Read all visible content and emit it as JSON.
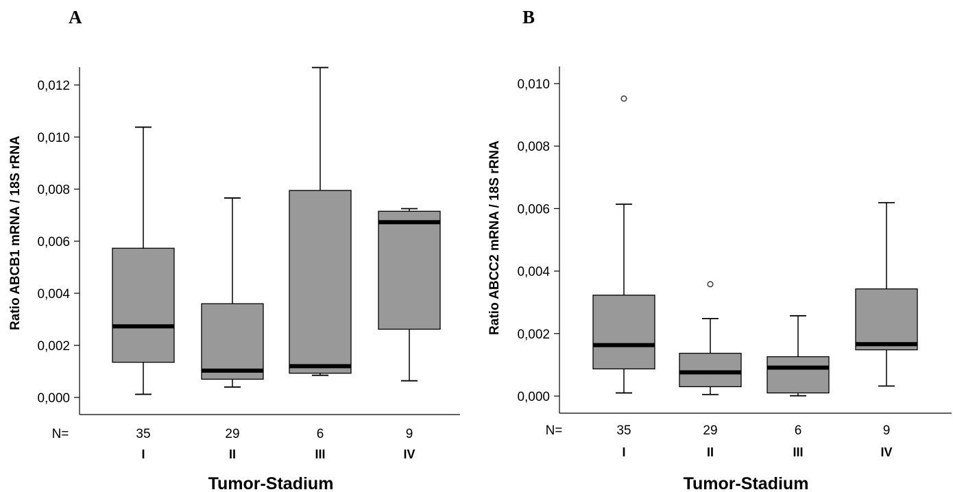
{
  "chart_data": [
    {
      "type": "box",
      "panel_label": "A",
      "ylabel": "Ratio ABCB1 mRNA / 18S rRNA",
      "xlabel": "Tumor-Stadium",
      "n_prefix": "N=",
      "categories": [
        "I",
        "II",
        "III",
        "IV"
      ],
      "n_values": [
        "35",
        "29",
        "6",
        "9"
      ],
      "ylim": [
        0,
        0.0128
      ],
      "yticks": [
        0.0,
        0.002,
        0.004,
        0.006,
        0.008,
        0.01,
        0.012
      ],
      "ytick_labels": [
        "0,000",
        "0,002",
        "0,004",
        "0,006",
        "0,008",
        "0,010",
        "0,012"
      ],
      "box_color": "#999999",
      "boxes": [
        {
          "min": 0.00012,
          "q1": 0.00135,
          "median": 0.00273,
          "q3": 0.00573,
          "max": 0.01038,
          "outliers": []
        },
        {
          "min": 0.0004,
          "q1": 0.0007,
          "median": 0.00103,
          "q3": 0.0036,
          "max": 0.00766,
          "outliers": []
        },
        {
          "min": 0.00085,
          "q1": 0.00093,
          "median": 0.0012,
          "q3": 0.00795,
          "max": 0.01267,
          "outliers": []
        },
        {
          "min": 0.00064,
          "q1": 0.00262,
          "median": 0.00673,
          "q3": 0.00715,
          "max": 0.00725,
          "outliers": []
        }
      ]
    },
    {
      "type": "box",
      "panel_label": "B",
      "ylabel": "Ratio ABCC2 mRNA / 18S rRNA",
      "xlabel": "Tumor-Stadium",
      "n_prefix": "N=",
      "categories": [
        "I",
        "II",
        "III",
        "IV"
      ],
      "n_values": [
        "35",
        "29",
        "6",
        "9"
      ],
      "ylim": [
        0,
        0.0105
      ],
      "yticks": [
        0.0,
        0.002,
        0.004,
        0.006,
        0.008,
        0.01
      ],
      "ytick_labels": [
        "0,000",
        "0,002",
        "0,004",
        "0,006",
        "0,008",
        "0,010"
      ],
      "box_color": "#999999",
      "boxes": [
        {
          "min": 0.0001,
          "q1": 0.00087,
          "median": 0.00163,
          "q3": 0.00323,
          "max": 0.00614,
          "outliers": [
            0.00952
          ]
        },
        {
          "min": 5e-05,
          "q1": 0.0003,
          "median": 0.00076,
          "q3": 0.00137,
          "max": 0.00248,
          "outliers": [
            0.00358
          ]
        },
        {
          "min": 1e-05,
          "q1": 0.0001,
          "median": 0.00091,
          "q3": 0.00126,
          "max": 0.00257,
          "outliers": []
        },
        {
          "min": 0.00032,
          "q1": 0.00148,
          "median": 0.00166,
          "q3": 0.00343,
          "max": 0.00619,
          "outliers": []
        }
      ]
    }
  ]
}
